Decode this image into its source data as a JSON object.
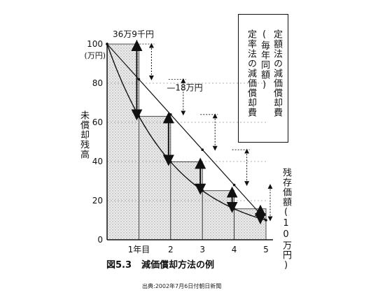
{
  "chart_data": {
    "type": "area",
    "title": "",
    "ylabel": "未償却残高",
    "y_unit_top": "100",
    "y_unit_label": "(万円)",
    "ylim": [
      0,
      100
    ],
    "xlim": [
      0,
      5
    ],
    "y_ticks": [
      0,
      20,
      40,
      60,
      80
    ],
    "x_tick_labels": [
      "1年目",
      "2",
      "3",
      "4",
      "5"
    ],
    "x_ticks": [
      1,
      2,
      3,
      4,
      5
    ],
    "series": [
      {
        "name": "定額法の減価償却費(毎年同額)",
        "style": "dotted",
        "x": [
          0,
          1,
          2,
          3,
          4,
          5
        ],
        "values": [
          100,
          82,
          64,
          46,
          28,
          10
        ]
      },
      {
        "name": "定率法の減価償却費",
        "style": "solid",
        "x": [
          0,
          1,
          2,
          3,
          4,
          5
        ],
        "values": [
          100,
          63.1,
          39.8,
          25.1,
          15.8,
          10
        ]
      }
    ],
    "annotations": {
      "first_year_rate": "36万9千円",
      "first_year_straight": "18万円",
      "residual": "残存価額(10万円)"
    },
    "colors": {
      "fill": "#e4e4e4",
      "line": "#111111"
    }
  },
  "legend": {
    "straight_line": "定額法の減価償却費",
    "straight_line_note": "(毎年同額)",
    "declining": "定率法の減価償却費"
  },
  "caption": {
    "number": "図5.3",
    "text": "減価償却方法の例"
  },
  "source": "出典:2002年7月6日付朝日新聞"
}
